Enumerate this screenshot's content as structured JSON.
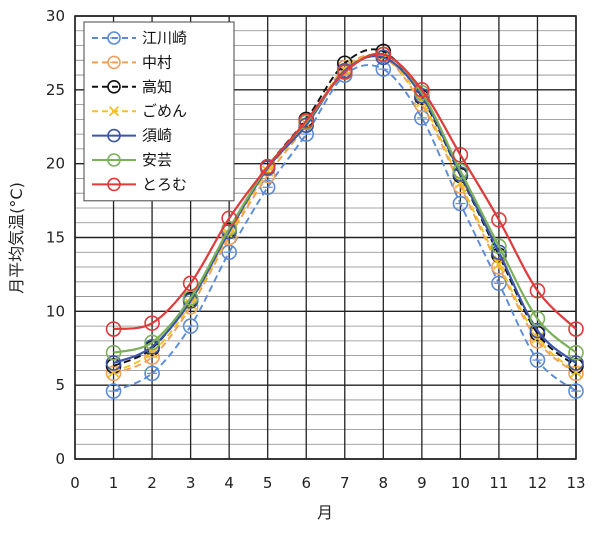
{
  "chart_data": {
    "type": "line",
    "title": "",
    "xlabel": "月",
    "ylabel": "月平均気温(°C)",
    "xlim": [
      0,
      13
    ],
    "ylim": [
      0,
      30
    ],
    "x_ticks": [
      "0",
      "1",
      "2",
      "3",
      "4",
      "5",
      "6",
      "7",
      "8",
      "9",
      "10",
      "11",
      "12",
      "13"
    ],
    "y_ticks": [
      "0",
      "5",
      "10",
      "15",
      "20",
      "25",
      "30"
    ],
    "grid": true,
    "legend_position": "top-left",
    "x": [
      1,
      2,
      3,
      4,
      5,
      6,
      7,
      8,
      9,
      10,
      11,
      12,
      13
    ],
    "series": [
      {
        "name": "江川崎",
        "color": "#5b8bd8",
        "dash": "dashed",
        "marker": "circle-cross",
        "values": [
          4.6,
          5.8,
          9.0,
          14.0,
          18.4,
          22.0,
          26.0,
          26.4,
          23.1,
          17.3,
          11.9,
          6.7,
          4.6
        ]
      },
      {
        "name": "中村",
        "color": "#f0a05a",
        "dash": "dashed",
        "marker": "circle-cross",
        "values": [
          5.8,
          6.9,
          10.3,
          15.0,
          19.2,
          22.6,
          26.5,
          27.2,
          24.0,
          18.5,
          13.0,
          8.0,
          5.8
        ]
      },
      {
        "name": "高知",
        "color": "#111111",
        "dash": "dashed",
        "marker": "circle",
        "values": [
          6.3,
          7.5,
          10.8,
          15.5,
          19.8,
          23.0,
          26.8,
          27.6,
          24.5,
          19.2,
          13.8,
          8.5,
          6.3
        ]
      },
      {
        "name": "ごめん",
        "color": "#f5c023",
        "dash": "dashed",
        "marker": "x",
        "values": [
          5.9,
          7.2,
          10.5,
          15.2,
          19.5,
          22.7,
          26.4,
          27.2,
          24.2,
          18.7,
          13.2,
          8.2,
          5.9
        ]
      },
      {
        "name": "須崎",
        "color": "#3b55a8",
        "dash": "solid",
        "marker": "circle",
        "values": [
          6.5,
          7.6,
          10.7,
          15.4,
          19.7,
          22.6,
          26.3,
          27.2,
          24.6,
          19.3,
          14.0,
          8.7,
          6.5
        ]
      },
      {
        "name": "安芸",
        "color": "#7bb05a",
        "dash": "solid",
        "marker": "circle",
        "values": [
          7.2,
          7.9,
          10.9,
          15.6,
          19.8,
          22.8,
          26.2,
          27.4,
          24.8,
          19.5,
          14.4,
          9.5,
          7.2
        ]
      },
      {
        "name": "とろむ",
        "color": "#e03a3a",
        "dash": "solid",
        "marker": "circle",
        "values": [
          8.8,
          9.2,
          11.9,
          16.3,
          19.8,
          22.9,
          26.2,
          27.4,
          25.0,
          20.6,
          16.2,
          11.4,
          8.8
        ]
      }
    ]
  }
}
